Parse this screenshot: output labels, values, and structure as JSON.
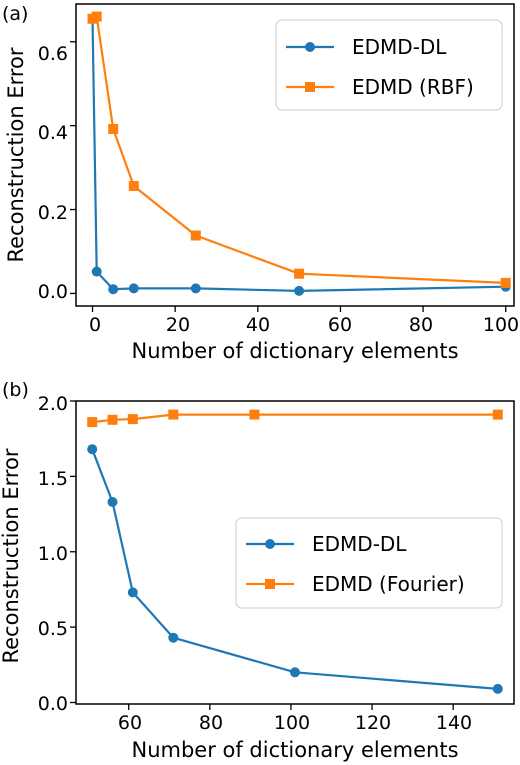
{
  "chart_data": [
    {
      "type": "line",
      "panel_label": "(a)",
      "xlabel": "Number of dictionary elements",
      "ylabel": "Reconstruction Error",
      "xlim": [
        -4,
        102
      ],
      "ylim": [
        -0.03,
        0.69
      ],
      "xticks": [
        0,
        20,
        40,
        60,
        80,
        100
      ],
      "xtick_labels": [
        "0",
        "20",
        "40",
        "60",
        "80",
        "100"
      ],
      "yticks": [
        0.0,
        0.2,
        0.4,
        0.6
      ],
      "ytick_labels": [
        "0.0",
        "0.2",
        "0.4",
        "0.6"
      ],
      "grid": false,
      "legend_position": "top-right",
      "series": [
        {
          "name": "EDMD-DL",
          "color": "#1f77b4",
          "marker": "circle",
          "x": [
            0,
            1,
            5,
            10,
            25,
            50,
            100
          ],
          "y": [
            0.655,
            0.052,
            0.01,
            0.012,
            0.012,
            0.006,
            0.016
          ]
        },
        {
          "name": "EDMD (RBF)",
          "color": "#ff7f0e",
          "marker": "square",
          "x": [
            0,
            1,
            5,
            10,
            25,
            50,
            100
          ],
          "y": [
            0.655,
            0.66,
            0.392,
            0.256,
            0.138,
            0.047,
            0.025
          ]
        }
      ]
    },
    {
      "type": "line",
      "panel_label": "(b)",
      "xlabel": "Number of dictionary elements",
      "ylabel": "Reconstruction Error",
      "xlim": [
        47,
        155
      ],
      "ylim": [
        -0.01,
        2.0
      ],
      "xticks": [
        60,
        80,
        100,
        120,
        140
      ],
      "xtick_labels": [
        "60",
        "80",
        "100",
        "120",
        "140"
      ],
      "yticks": [
        0.0,
        0.5,
        1.0,
        1.5,
        2.0
      ],
      "ytick_labels": [
        "0.0",
        "0.5",
        "1.0",
        "1.5",
        "2.0"
      ],
      "grid": false,
      "legend_position": "center-right",
      "series": [
        {
          "name": "EDMD-DL",
          "color": "#1f77b4",
          "marker": "circle",
          "x": [
            51,
            56,
            61,
            71,
            101,
            151
          ],
          "y": [
            1.68,
            1.33,
            0.73,
            0.43,
            0.2,
            0.09
          ]
        },
        {
          "name": "EDMD (Fourier)",
          "color": "#ff7f0e",
          "marker": "square",
          "x": [
            51,
            56,
            61,
            71,
            91,
            151
          ],
          "y": [
            1.86,
            1.875,
            1.88,
            1.91,
            1.91,
            1.91
          ]
        }
      ]
    }
  ]
}
